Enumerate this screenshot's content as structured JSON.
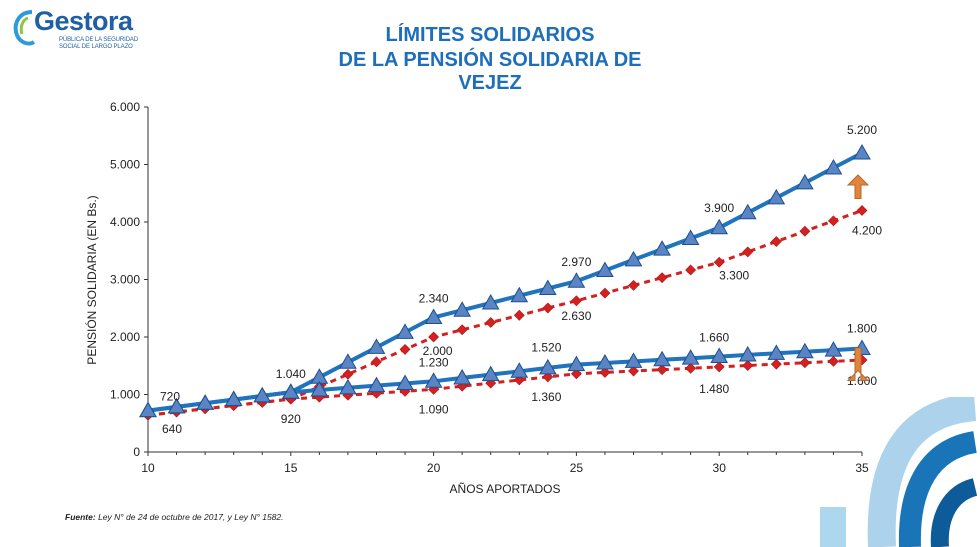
{
  "logo": {
    "name": "Gestora",
    "subtitle_line1": "PÚBLICA DE LA SEGURIDAD",
    "subtitle_line2": "SOCIAL DE LARGO PLAZO"
  },
  "header": {
    "title_line1": "LÍMITES SOLIDARIOS",
    "title_line2": "DE LA PENSIÓN SOLIDARIA DE VEJEZ"
  },
  "footer": {
    "source_label": "Fuente:",
    "source_text": " Ley N° de 24 de octubre de 2017, y  Ley N° 1582."
  },
  "colors": {
    "blue_line": "#1f74bd",
    "blue_marker": "#5b84c4",
    "red_line": "#d42020",
    "arrow": "#e0853b",
    "title": "#1e6fba"
  },
  "chart_data": {
    "type": "line",
    "title": "",
    "xlabel": "AÑOS APORTADOS",
    "ylabel": "PENSIÓN SOLIDARIA (EN Bs.)",
    "xlim": [
      10,
      35
    ],
    "ylim": [
      0,
      6000
    ],
    "x_ticks": [
      10,
      15,
      20,
      25,
      30,
      35
    ],
    "y_ticks": [
      0,
      1000,
      2000,
      3000,
      4000,
      5000,
      6000
    ],
    "y_tick_labels": [
      "0",
      "1.000",
      "2.000",
      "3.000",
      "4.000",
      "5.000",
      "6.000"
    ],
    "grid": false,
    "legend": "none",
    "x": [
      10,
      11,
      12,
      13,
      14,
      15,
      16,
      17,
      18,
      19,
      20,
      21,
      22,
      23,
      24,
      25,
      26,
      27,
      28,
      29,
      30,
      31,
      32,
      33,
      34,
      35
    ],
    "series": [
      {
        "style": "blue-triangle",
        "values": [
          720,
          784,
          848,
          912,
          976,
          1040,
          1300,
          1560,
          1820,
          2080,
          2340,
          2466,
          2592,
          2718,
          2844,
          2970,
          3156,
          3342,
          3528,
          3714,
          3900,
          4160,
          4420,
          4680,
          4940,
          5200
        ]
      },
      {
        "style": "red-diamond-dashed",
        "values": [
          640,
          696,
          752,
          808,
          864,
          920,
          1136,
          1352,
          1568,
          1784,
          2000,
          2126,
          2252,
          2378,
          2504,
          2630,
          2764,
          2898,
          3032,
          3166,
          3300,
          3480,
          3660,
          3840,
          4020,
          4200
        ]
      },
      {
        "style": "blue-triangle",
        "values": [
          720,
          784,
          848,
          912,
          976,
          1040,
          1078,
          1116,
          1154,
          1192,
          1230,
          1288,
          1346,
          1404,
          1462,
          1520,
          1548,
          1576,
          1604,
          1632,
          1660,
          1688,
          1716,
          1744,
          1772,
          1800
        ]
      },
      {
        "style": "red-diamond-dashed",
        "values": [
          640,
          696,
          752,
          808,
          864,
          920,
          954,
          988,
          1022,
          1056,
          1090,
          1144,
          1198,
          1252,
          1306,
          1360,
          1384,
          1408,
          1432,
          1456,
          1480,
          1504,
          1528,
          1552,
          1576,
          1600
        ]
      }
    ],
    "annotations": [
      {
        "text": "720",
        "x": 10,
        "y": 720
      },
      {
        "text": "640",
        "x": 10,
        "y": 640
      },
      {
        "text": "1.040",
        "x": 15,
        "y": 1040
      },
      {
        "text": "920",
        "x": 15,
        "y": 920
      },
      {
        "text": "2.340",
        "x": 20,
        "y": 2340
      },
      {
        "text": "2.000",
        "x": 20,
        "y": 2000
      },
      {
        "text": "1.230",
        "x": 20,
        "y": 1230
      },
      {
        "text": "1.090",
        "x": 20,
        "y": 1090
      },
      {
        "text": "2.970",
        "x": 25,
        "y": 2970
      },
      {
        "text": "2.630",
        "x": 25,
        "y": 2630
      },
      {
        "text": "1.520",
        "x": 25,
        "y": 1520
      },
      {
        "text": "1.360",
        "x": 25,
        "y": 1360
      },
      {
        "text": "3.900",
        "x": 30,
        "y": 3900
      },
      {
        "text": "3.300",
        "x": 30,
        "y": 3300
      },
      {
        "text": "1.660",
        "x": 30,
        "y": 1660
      },
      {
        "text": "1.480",
        "x": 30,
        "y": 1480
      },
      {
        "text": "5.200",
        "x": 35,
        "y": 5200
      },
      {
        "text": "4.200",
        "x": 35,
        "y": 4200
      },
      {
        "text": "1.800",
        "x": 35,
        "y": 1800
      },
      {
        "text": "1.600",
        "x": 35,
        "y": 1600
      }
    ],
    "arrows": [
      {
        "from": 4200,
        "to": 5200,
        "x": 35
      },
      {
        "from": 1600,
        "to": 1800,
        "x": 35
      }
    ]
  }
}
